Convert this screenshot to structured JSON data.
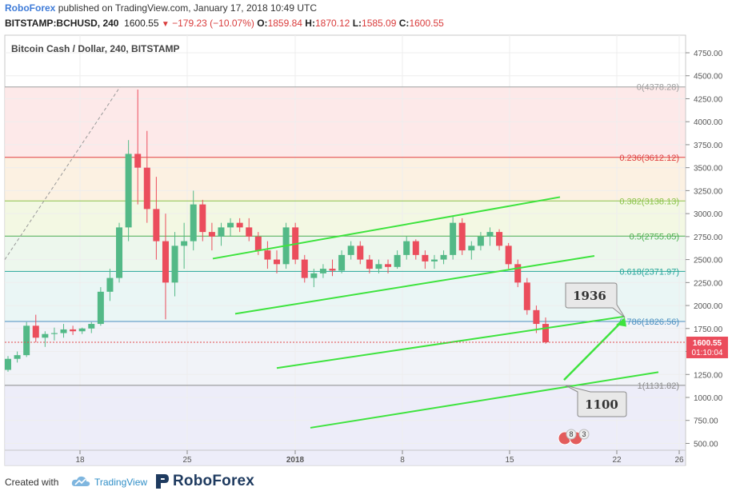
{
  "header": {
    "publisher": "RoboForex",
    "published_text": "published on TradingView.com, January 17, 2018 10:49 UTC",
    "symbol": "BITSTAMP:BCHUSD, 240",
    "last": "1600.55",
    "change": "−179.23 (−10.07%)",
    "o_label": "O:",
    "o": "1859.84",
    "h_label": "H:",
    "h": "1870.12",
    "l_label": "L:",
    "l": "1585.09",
    "c_label": "C:",
    "c": "1600.55"
  },
  "footer": {
    "created_with": "Created with",
    "tradingview": "TradingView",
    "roboforex": "RoboForex"
  },
  "colors": {
    "up": "#53b987",
    "down": "#eb4d5c",
    "trend": "#3ee33e",
    "grid": "#eeeeee"
  },
  "chart_data": {
    "type": "candlestick",
    "title": "Bitcoin Cash / Dollar, 240, BITSTAMP",
    "x_ticks": [
      "18",
      "25",
      "2018",
      "8",
      "15",
      "22",
      "26"
    ],
    "y_ticks": [
      500,
      750,
      1000,
      1250,
      1500,
      1750,
      2000,
      2250,
      2500,
      2750,
      3000,
      3250,
      3500,
      3750,
      4000,
      4250,
      4500,
      4750
    ],
    "ylim": [
      400,
      4850
    ],
    "fibonacci": [
      {
        "level": "0",
        "price": 4378.28,
        "label": "0(4378.28)",
        "color": "#9e9e9e"
      },
      {
        "level": "0.236",
        "price": 3612.12,
        "label": "0.236(3612.12)",
        "color": "#e04040"
      },
      {
        "level": "0.382",
        "price": 3138.13,
        "label": "0.382(3138.13)",
        "color": "#8bc34a"
      },
      {
        "level": "0.5",
        "price": 2755.05,
        "label": "0.5(2755.05)",
        "color": "#4caf50"
      },
      {
        "level": "0.618",
        "price": 2371.97,
        "label": "0.618(2371.97)",
        "color": "#26a69a"
      },
      {
        "level": "0.786",
        "price": 1826.56,
        "label": "0.786(1826.56)",
        "color": "#4a8fc0"
      },
      {
        "level": "1",
        "price": 1131.82,
        "label": "1(1131.82)",
        "color": "#8a8a8a"
      }
    ],
    "last_price": "1600.55",
    "countdown": "01:10:04",
    "annotations": [
      {
        "text": "1936",
        "price": 1936
      },
      {
        "text": "1100",
        "price": 1100
      }
    ],
    "candles_approx": [
      [
        1300,
        1450,
        1280,
        1420
      ],
      [
        1420,
        1500,
        1380,
        1460
      ],
      [
        1460,
        1820,
        1440,
        1780
      ],
      [
        1780,
        1900,
        1600,
        1650
      ],
      [
        1650,
        1720,
        1550,
        1690
      ],
      [
        1690,
        1760,
        1620,
        1700
      ],
      [
        1700,
        1800,
        1650,
        1740
      ],
      [
        1740,
        1780,
        1680,
        1720
      ],
      [
        1720,
        1760,
        1690,
        1750
      ],
      [
        1750,
        1820,
        1700,
        1800
      ],
      [
        1800,
        2200,
        1780,
        2150
      ],
      [
        2150,
        2400,
        2050,
        2300
      ],
      [
        2300,
        2900,
        2250,
        2850
      ],
      [
        2850,
        3800,
        2700,
        3650
      ],
      [
        3650,
        4350,
        3100,
        3500
      ],
      [
        3500,
        3900,
        2900,
        3050
      ],
      [
        3050,
        3400,
        2500,
        2700
      ],
      [
        2700,
        3000,
        1850,
        2250
      ],
      [
        2250,
        2800,
        2100,
        2650
      ],
      [
        2650,
        2900,
        2400,
        2700
      ],
      [
        2700,
        3250,
        2600,
        3100
      ],
      [
        3100,
        3150,
        2700,
        2800
      ],
      [
        2800,
        2900,
        2600,
        2750
      ],
      [
        2750,
        2900,
        2650,
        2850
      ],
      [
        2850,
        2950,
        2750,
        2900
      ],
      [
        2900,
        2950,
        2800,
        2850
      ],
      [
        2850,
        2950,
        2700,
        2750
      ],
      [
        2750,
        2800,
        2550,
        2600
      ],
      [
        2600,
        2700,
        2400,
        2500
      ],
      [
        2500,
        2600,
        2350,
        2450
      ],
      [
        2450,
        2900,
        2400,
        2850
      ],
      [
        2850,
        2900,
        2450,
        2500
      ],
      [
        2500,
        2550,
        2250,
        2300
      ],
      [
        2300,
        2400,
        2200,
        2350
      ],
      [
        2350,
        2450,
        2300,
        2400
      ],
      [
        2400,
        2500,
        2320,
        2380
      ],
      [
        2380,
        2600,
        2350,
        2550
      ],
      [
        2550,
        2700,
        2500,
        2650
      ],
      [
        2650,
        2700,
        2450,
        2500
      ],
      [
        2500,
        2550,
        2350,
        2400
      ],
      [
        2400,
        2500,
        2350,
        2450
      ],
      [
        2450,
        2500,
        2350,
        2420
      ],
      [
        2420,
        2600,
        2400,
        2550
      ],
      [
        2550,
        2750,
        2500,
        2700
      ],
      [
        2700,
        2720,
        2500,
        2550
      ],
      [
        2550,
        2600,
        2400,
        2480
      ],
      [
        2480,
        2550,
        2400,
        2500
      ],
      [
        2500,
        2600,
        2450,
        2550
      ],
      [
        2550,
        2980,
        2500,
        2900
      ],
      [
        2900,
        2950,
        2550,
        2600
      ],
      [
        2600,
        2700,
        2500,
        2650
      ],
      [
        2650,
        2800,
        2600,
        2750
      ],
      [
        2750,
        2850,
        2650,
        2800
      ],
      [
        2800,
        2830,
        2600,
        2650
      ],
      [
        2650,
        2680,
        2400,
        2450
      ],
      [
        2450,
        2500,
        2200,
        2250
      ],
      [
        2250,
        2300,
        1900,
        1950
      ],
      [
        1950,
        2000,
        1700,
        1800
      ],
      [
        1800,
        1870,
        1585,
        1600
      ]
    ]
  }
}
